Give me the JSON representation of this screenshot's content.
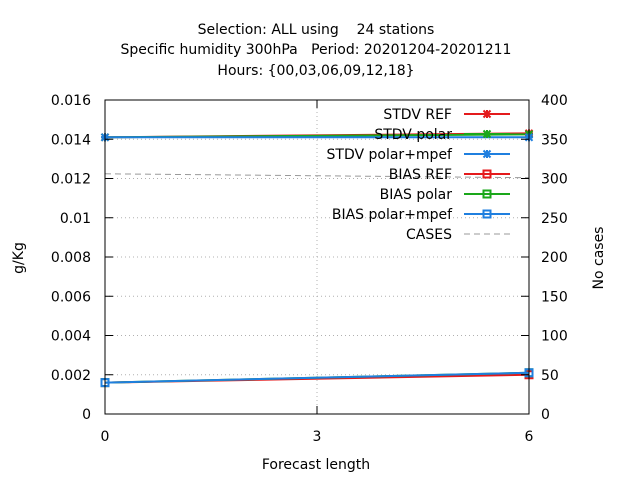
{
  "chart_data": {
    "type": "line",
    "title_lines": [
      "Selection: ALL using    24 stations",
      "Specific humidity 300hPa   Period: 20201204-20201211",
      "Hours: {00,03,06,09,12,18}"
    ],
    "xlabel": "Forecast length",
    "ylabel": "g/Kg",
    "y2label": "No cases",
    "xlim": [
      0,
      6
    ],
    "ylim": [
      0,
      0.016
    ],
    "y2lim": [
      0,
      400
    ],
    "x_ticks": [
      "0",
      "3",
      "6"
    ],
    "y_ticks": [
      "0",
      "0.002",
      "0.004",
      "0.006",
      "0.008",
      "0.01",
      "0.012",
      "0.014",
      "0.016"
    ],
    "y2_ticks": [
      "0",
      "50",
      "100",
      "150",
      "200",
      "250",
      "300",
      "350",
      "400"
    ],
    "grid": true,
    "legend_position": "top-right",
    "series": [
      {
        "name": "STDV REF",
        "axis": "y",
        "color": "#e41a1c",
        "marker": "x",
        "style": "solid",
        "x": [
          0,
          6
        ],
        "values": [
          0.0141,
          0.0143
        ]
      },
      {
        "name": "STDV polar",
        "axis": "y",
        "color": "#1aa71a",
        "marker": "x",
        "style": "solid",
        "x": [
          0,
          6
        ],
        "values": [
          0.0141,
          0.01425
        ]
      },
      {
        "name": "STDV polar+mpef",
        "axis": "y",
        "color": "#1f7fdf",
        "marker": "x",
        "style": "solid",
        "x": [
          0,
          6
        ],
        "values": [
          0.0141,
          0.0141
        ]
      },
      {
        "name": "BIAS REF",
        "axis": "y",
        "color": "#e41a1c",
        "marker": "square",
        "style": "solid",
        "x": [
          0,
          6
        ],
        "values": [
          0.0016,
          0.002
        ]
      },
      {
        "name": "BIAS polar",
        "axis": "y",
        "color": "#1aa71a",
        "marker": "square",
        "style": "solid",
        "x": [
          0,
          6
        ],
        "values": [
          0.0016,
          0.0021
        ]
      },
      {
        "name": "BIAS polar+mpef",
        "axis": "y",
        "color": "#1f7fdf",
        "marker": "square",
        "style": "solid",
        "x": [
          0,
          6
        ],
        "values": [
          0.0016,
          0.0021
        ]
      },
      {
        "name": "CASES",
        "axis": "y2",
        "color": "#999999",
        "marker": "none",
        "style": "dashed",
        "x": [
          0,
          6
        ],
        "values": [
          306,
          301
        ]
      }
    ]
  }
}
